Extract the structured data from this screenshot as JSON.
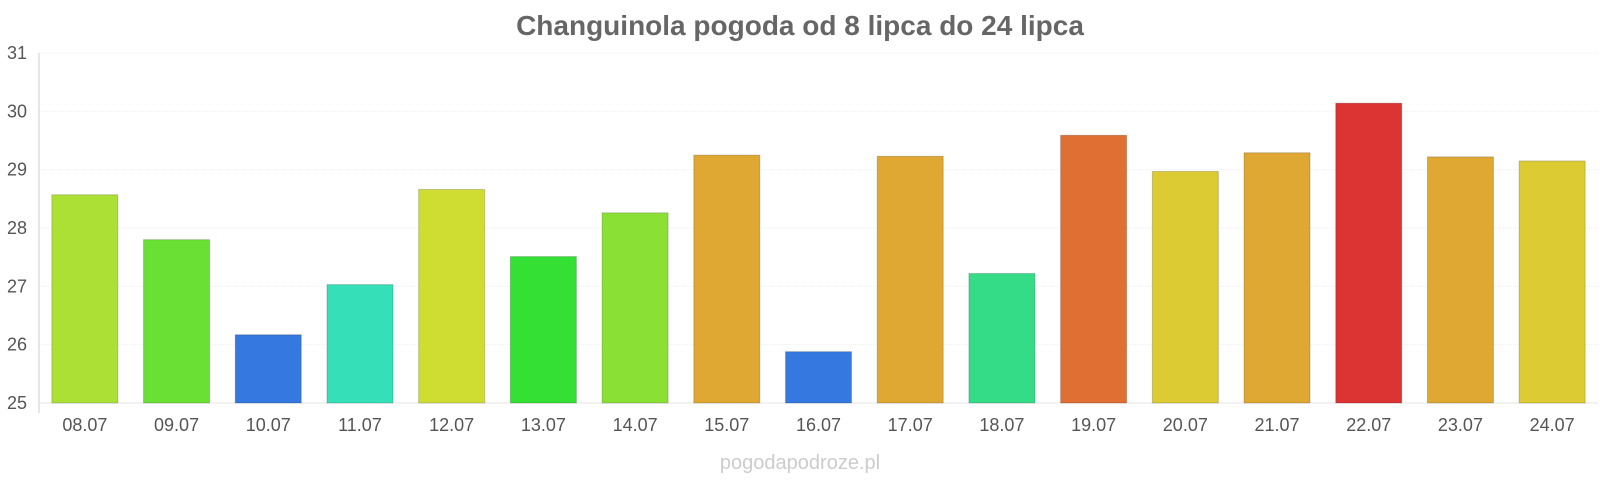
{
  "chart_data": {
    "type": "bar",
    "title": "Changuinola pogoda od 8 lipca do 24 lipca",
    "xlabel": "",
    "ylabel": "",
    "ylim": [
      25,
      31
    ],
    "yticks": [
      25,
      26,
      27,
      28,
      29,
      30,
      31
    ],
    "grid": true,
    "categories": [
      "08.07",
      "09.07",
      "10.07",
      "11.07",
      "12.07",
      "13.07",
      "14.07",
      "15.07",
      "16.07",
      "17.07",
      "18.07",
      "19.07",
      "20.07",
      "21.07",
      "22.07",
      "23.07",
      "24.07"
    ],
    "values": [
      28.57,
      27.8,
      26.17,
      27.03,
      28.66,
      27.51,
      28.26,
      29.25,
      25.88,
      29.23,
      27.22,
      29.59,
      28.97,
      29.29,
      30.14,
      29.22,
      29.15
    ],
    "colors": [
      "#ade035",
      "#6ae035",
      "#3578e0",
      "#35e0b8",
      "#cfdd33",
      "#33e033",
      "#8be035",
      "#dea833",
      "#3578e0",
      "#dea833",
      "#35dc88",
      "#df6f33",
      "#dccb33",
      "#dea833",
      "#dc3333",
      "#dea833",
      "#dccb33"
    ]
  },
  "watermark": "pogodapodroze.pl"
}
